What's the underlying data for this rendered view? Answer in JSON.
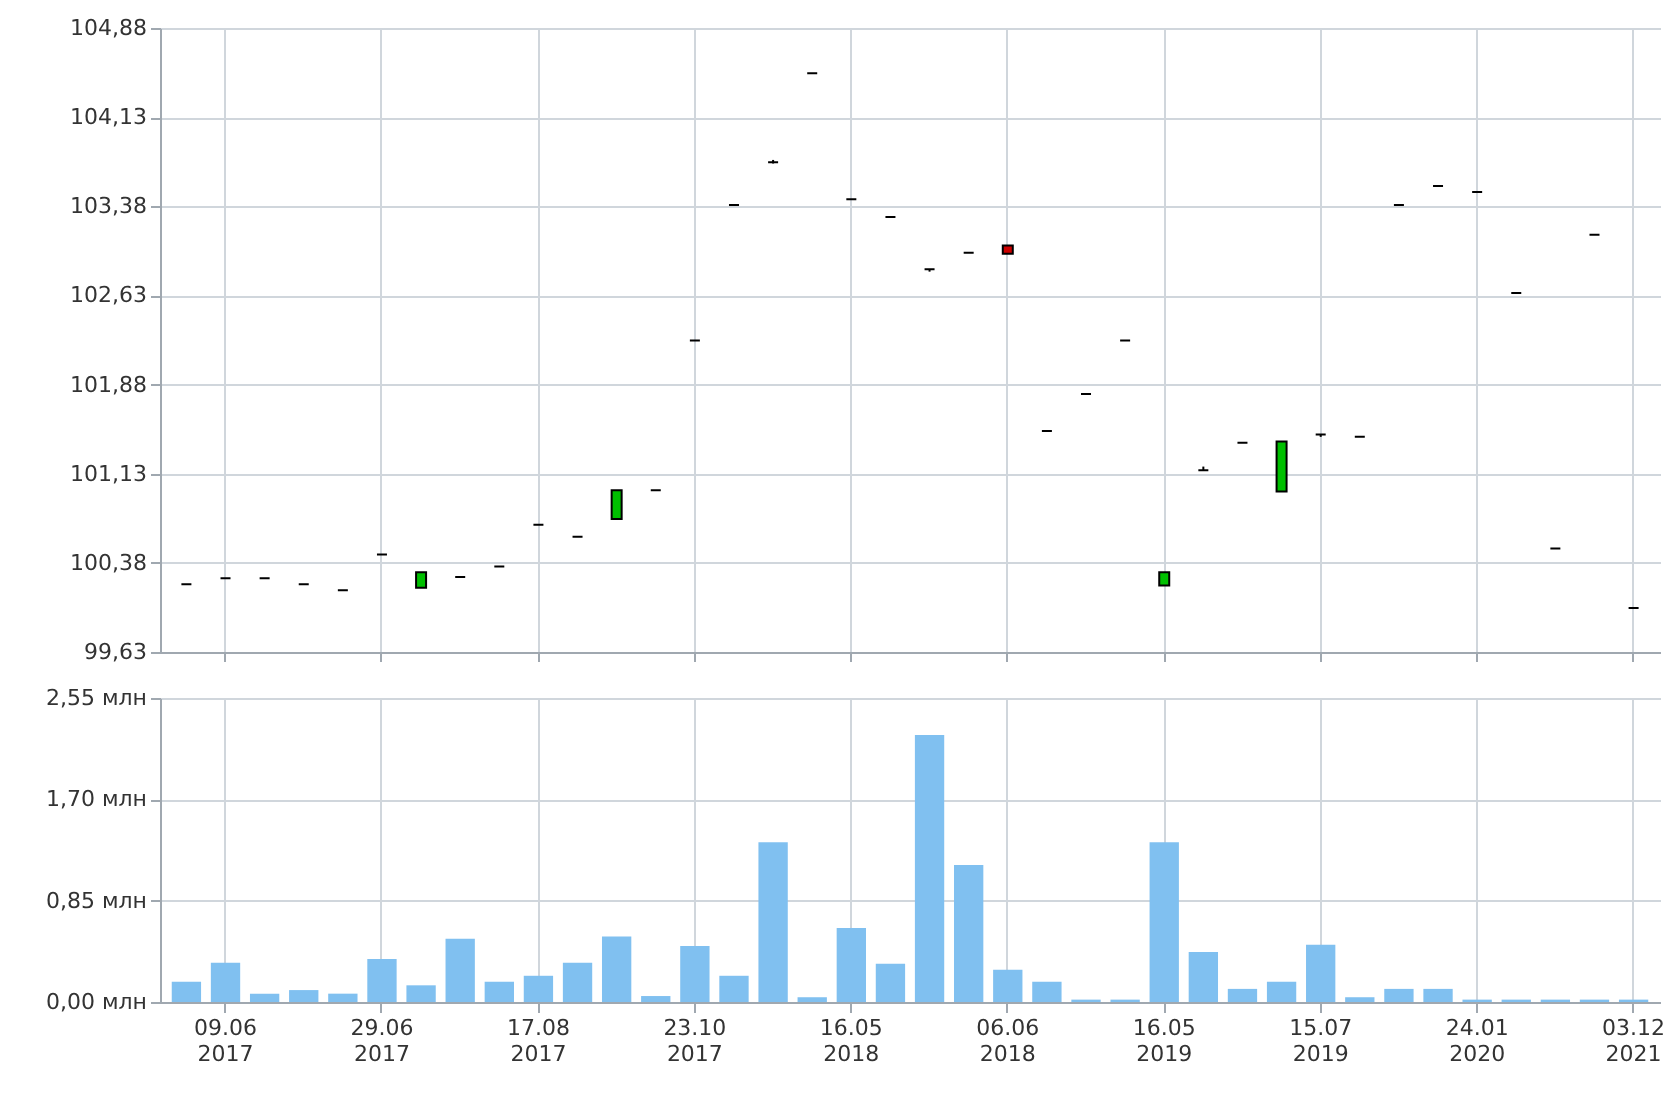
{
  "chart_data": [
    {
      "type": "candlestick",
      "categories": [
        null,
        null,
        null,
        null,
        null,
        null,
        null,
        null,
        null,
        null,
        null,
        null,
        null,
        null,
        null,
        null,
        null,
        null,
        null,
        null,
        null,
        null,
        null,
        null,
        null,
        null,
        null,
        null,
        null,
        null,
        null,
        null,
        null,
        null,
        null,
        null,
        null,
        null
      ],
      "ohlc": [
        [
          100.2,
          100.2,
          100.2,
          100.2
        ],
        [
          100.25,
          100.25,
          100.25,
          100.25
        ],
        [
          100.25,
          100.25,
          100.25,
          100.25
        ],
        [
          100.2,
          100.2,
          100.2,
          100.2
        ],
        [
          100.15,
          100.15,
          100.15,
          100.15
        ],
        [
          100.45,
          100.45,
          100.45,
          100.45
        ],
        [
          100.17,
          100.3,
          100.17,
          100.3
        ],
        [
          100.26,
          100.26,
          100.26,
          100.26
        ],
        [
          100.35,
          100.35,
          100.35,
          100.35
        ],
        [
          100.7,
          100.7,
          100.7,
          100.7
        ],
        [
          100.6,
          100.6,
          100.6,
          100.6
        ],
        [
          100.75,
          100.99,
          100.75,
          100.99
        ],
        [
          100.99,
          100.99,
          100.99,
          100.99
        ],
        [
          102.25,
          102.25,
          102.25,
          102.25
        ],
        [
          103.39,
          103.39,
          103.39,
          103.39
        ],
        [
          103.75,
          103.77,
          103.74,
          103.75
        ],
        [
          104.5,
          104.5,
          104.5,
          104.5
        ],
        [
          103.44,
          103.44,
          103.44,
          103.44
        ],
        [
          103.29,
          103.29,
          103.29,
          103.29
        ],
        [
          102.85,
          102.85,
          102.83,
          102.85
        ],
        [
          102.99,
          102.99,
          102.99,
          102.99
        ],
        [
          103.05,
          103.05,
          102.98,
          102.98
        ],
        [
          101.49,
          101.49,
          101.49,
          101.49
        ],
        [
          101.8,
          101.8,
          101.8,
          101.8
        ],
        [
          102.25,
          102.25,
          102.25,
          102.25
        ],
        [
          100.19,
          100.3,
          100.19,
          100.3
        ],
        [
          101.16,
          101.19,
          101.16,
          101.16
        ],
        [
          101.39,
          101.39,
          101.39,
          101.39
        ],
        [
          100.98,
          101.4,
          100.98,
          101.4
        ],
        [
          101.46,
          101.46,
          101.44,
          101.46
        ],
        [
          101.44,
          101.44,
          101.44,
          101.44
        ],
        [
          103.39,
          103.39,
          103.39,
          103.39
        ],
        [
          103.55,
          103.55,
          103.55,
          103.55
        ],
        [
          103.5,
          103.5,
          103.5,
          103.5
        ],
        [
          102.65,
          102.65,
          102.65,
          102.65
        ],
        [
          100.5,
          100.5,
          100.5,
          100.5
        ],
        [
          103.14,
          103.14,
          103.14,
          103.14
        ],
        [
          100.0,
          100.0,
          100.0,
          100.0
        ]
      ],
      "colors": [
        "#000000",
        "#000000",
        "#000000",
        "#000000",
        "#000000",
        "#000000",
        "#00c000",
        "#000000",
        "#000000",
        "#000000",
        "#000000",
        "#00c000",
        "#000000",
        "#000000",
        "#000000",
        "#000000",
        "#000000",
        "#000000",
        "#000000",
        "#000000",
        "#000000",
        "#cc0000",
        "#000000",
        "#000000",
        "#000000",
        "#00c000",
        "#000000",
        "#000000",
        "#00c000",
        "#000000",
        "#000000",
        "#000000",
        "#000000",
        "#000000",
        "#000000",
        "#000000",
        "#000000",
        "#000000"
      ],
      "ylim": [
        99.63,
        104.88
      ],
      "yticks": [
        {
          "value": 99.63,
          "label": "99,63"
        },
        {
          "value": 100.38,
          "label": "100,38"
        },
        {
          "value": 101.13,
          "label": "101,13"
        },
        {
          "value": 101.88,
          "label": "101,88"
        },
        {
          "value": 102.63,
          "label": "102,63"
        },
        {
          "value": 103.38,
          "label": "103,38"
        },
        {
          "value": 104.13,
          "label": "104,13"
        },
        {
          "value": 104.88,
          "label": "104,88"
        }
      ],
      "grid": true,
      "tick_labels": "y"
    },
    {
      "type": "bar",
      "categories": [
        null,
        "09.06 2017",
        null,
        null,
        null,
        "29.06 2017",
        null,
        null,
        null,
        "17.08 2017",
        null,
        null,
        null,
        "23.10 2017",
        null,
        null,
        null,
        "16.05 2018",
        null,
        null,
        null,
        "06.06 2018",
        null,
        null,
        null,
        "16.05 2019",
        null,
        null,
        null,
        "15.07 2019",
        null,
        null,
        null,
        "24.01 2020",
        null,
        null,
        null,
        "03.12 2021"
      ],
      "values": [
        0.17,
        0.33,
        0.07,
        0.1,
        0.07,
        0.36,
        0.14,
        0.53,
        0.17,
        0.22,
        0.33,
        0.55,
        0.05,
        0.47,
        0.22,
        1.34,
        0.04,
        0.62,
        0.32,
        2.24,
        1.15,
        0.27,
        0.17,
        0.02,
        0.02,
        1.34,
        0.42,
        0.11,
        0.17,
        0.48,
        0.04,
        0.11,
        0.11,
        0.02,
        0.02,
        0.02,
        0.02,
        0.02
      ],
      "color": "#80c0f0",
      "ylim": [
        0,
        2.55
      ],
      "yticks": [
        {
          "value": 0,
          "label": "0,00 млн"
        },
        {
          "value": 0.85,
          "label": "0,85 млн"
        },
        {
          "value": 1.7,
          "label": "1,70 млн"
        },
        {
          "value": 2.55,
          "label": "2,55 млн"
        }
      ],
      "grid": true
    }
  ]
}
